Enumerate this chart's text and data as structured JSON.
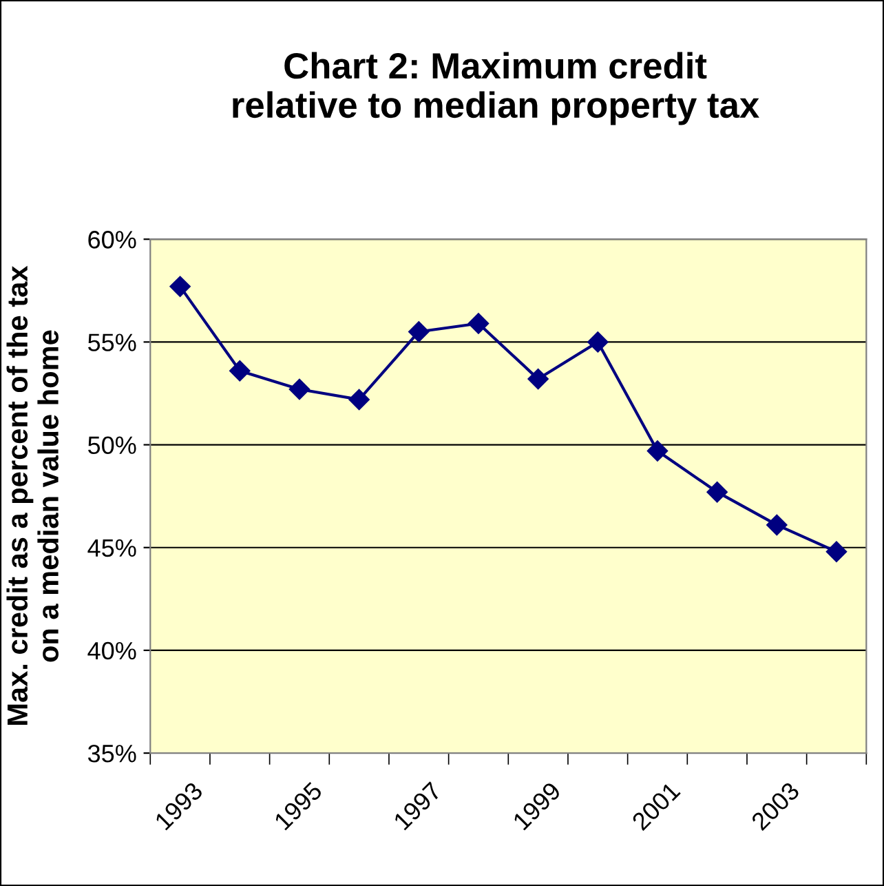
{
  "chart_data": {
    "type": "line",
    "title": "Chart 2: Maximum credit\nrelative to median property tax",
    "ylabel": "Max. credit as a percent of the tax\non a median value home",
    "categories": [
      "1993",
      null,
      "1995",
      null,
      "1997",
      null,
      "1999",
      null,
      "2001",
      null,
      "2003",
      null
    ],
    "series": [
      {
        "color": "#000080",
        "values": [
          57.7,
          53.6,
          52.7,
          52.2,
          55.5,
          55.9,
          53.2,
          55.0,
          49.7,
          47.7,
          46.1,
          44.8
        ]
      }
    ],
    "ylim": [
      35,
      60
    ],
    "yticks": [
      {
        "value": 35,
        "label": "35%"
      },
      {
        "value": 40,
        "label": "40%"
      },
      {
        "value": 45,
        "label": "45%"
      },
      {
        "value": 50,
        "label": "50%"
      },
      {
        "value": 55,
        "label": "55%"
      },
      {
        "value": 60,
        "label": "60%"
      }
    ],
    "grid": "y",
    "marker": "diamond",
    "line_style": "solid",
    "legend": false
  }
}
